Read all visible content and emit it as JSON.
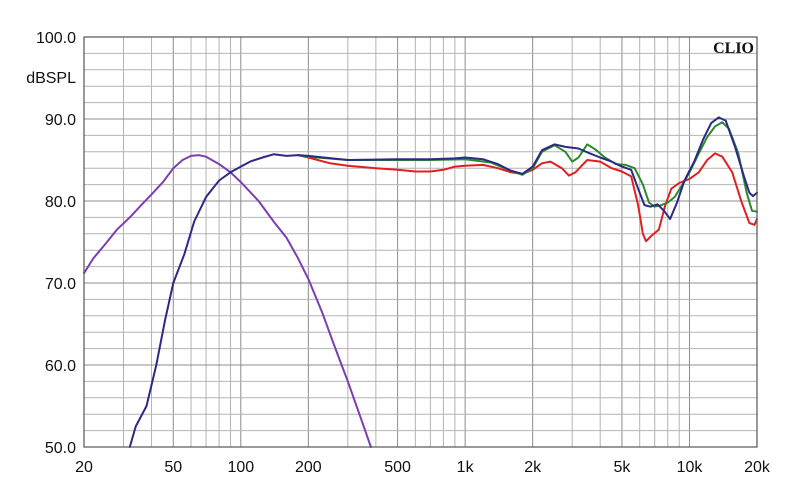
{
  "brand": "CLIO",
  "chart_data": {
    "type": "line",
    "title": "",
    "xlabel": "",
    "ylabel": "dBSPL",
    "xscale": "log",
    "xlim": [
      20,
      20000
    ],
    "ylim": [
      50,
      100
    ],
    "grid": true,
    "x_ticks": [
      {
        "value": 20,
        "label": "20"
      },
      {
        "value": 50,
        "label": "50"
      },
      {
        "value": 100,
        "label": "100"
      },
      {
        "value": 200,
        "label": "200"
      },
      {
        "value": 500,
        "label": "500"
      },
      {
        "value": 1000,
        "label": "1k"
      },
      {
        "value": 2000,
        "label": "2k"
      },
      {
        "value": 5000,
        "label": "5k"
      },
      {
        "value": 10000,
        "label": "10k"
      },
      {
        "value": 20000,
        "label": "20k"
      }
    ],
    "y_ticks": [
      {
        "value": 100,
        "label": "100.0"
      },
      {
        "value": 90,
        "label": "90.0"
      },
      {
        "value": 80,
        "label": "80.0"
      },
      {
        "value": 70,
        "label": "70.0"
      },
      {
        "value": 60,
        "label": "60.0"
      },
      {
        "value": 50,
        "label": "50.0"
      }
    ],
    "series": [
      {
        "color": "#7b3fb0",
        "points": [
          [
            20,
            71.2
          ],
          [
            22,
            73.0
          ],
          [
            25,
            74.8
          ],
          [
            28,
            76.5
          ],
          [
            32,
            78.0
          ],
          [
            36,
            79.5
          ],
          [
            40,
            80.8
          ],
          [
            45,
            82.3
          ],
          [
            50,
            84.0
          ],
          [
            55,
            85.0
          ],
          [
            60,
            85.5
          ],
          [
            65,
            85.6
          ],
          [
            70,
            85.4
          ],
          [
            80,
            84.5
          ],
          [
            90,
            83.5
          ],
          [
            100,
            82.3
          ],
          [
            120,
            80.0
          ],
          [
            140,
            77.5
          ],
          [
            160,
            75.5
          ],
          [
            180,
            73.0
          ],
          [
            200,
            70.5
          ],
          [
            230,
            66.5
          ],
          [
            260,
            62.5
          ],
          [
            300,
            58.0
          ],
          [
            340,
            53.8
          ],
          [
            380,
            50.0
          ]
        ]
      },
      {
        "color": "#e02020",
        "points": [
          [
            180,
            85.6
          ],
          [
            200,
            85.3
          ],
          [
            250,
            84.6
          ],
          [
            300,
            84.3
          ],
          [
            400,
            84.0
          ],
          [
            500,
            83.8
          ],
          [
            600,
            83.6
          ],
          [
            700,
            83.6
          ],
          [
            800,
            83.8
          ],
          [
            900,
            84.2
          ],
          [
            1000,
            84.3
          ],
          [
            1200,
            84.4
          ],
          [
            1400,
            84.0
          ],
          [
            1600,
            83.5
          ],
          [
            1800,
            83.3
          ],
          [
            2000,
            83.8
          ],
          [
            2200,
            84.6
          ],
          [
            2400,
            84.8
          ],
          [
            2700,
            84.0
          ],
          [
            2900,
            83.1
          ],
          [
            3100,
            83.5
          ],
          [
            3500,
            85.0
          ],
          [
            4000,
            84.8
          ],
          [
            4500,
            84.0
          ],
          [
            5000,
            83.6
          ],
          [
            5500,
            83.0
          ],
          [
            5900,
            79.5
          ],
          [
            6200,
            76.0
          ],
          [
            6400,
            75.1
          ],
          [
            6800,
            75.8
          ],
          [
            7300,
            76.5
          ],
          [
            7800,
            79.5
          ],
          [
            8300,
            81.5
          ],
          [
            9000,
            82.2
          ],
          [
            10000,
            82.7
          ],
          [
            11000,
            83.5
          ],
          [
            12000,
            85.0
          ],
          [
            13000,
            85.8
          ],
          [
            14000,
            85.4
          ],
          [
            15500,
            83.5
          ],
          [
            17000,
            80.0
          ],
          [
            18500,
            77.3
          ],
          [
            19500,
            77.1
          ],
          [
            20000,
            77.8
          ]
        ]
      },
      {
        "color": "#2c8a2c",
        "points": [
          [
            180,
            85.6
          ],
          [
            200,
            85.4
          ],
          [
            300,
            85.0
          ],
          [
            500,
            85.0
          ],
          [
            700,
            85.0
          ],
          [
            1000,
            85.1
          ],
          [
            1300,
            84.7
          ],
          [
            1600,
            83.7
          ],
          [
            1800,
            83.2
          ],
          [
            2000,
            84.0
          ],
          [
            2200,
            86.0
          ],
          [
            2500,
            86.8
          ],
          [
            2800,
            86.0
          ],
          [
            3000,
            84.8
          ],
          [
            3200,
            85.3
          ],
          [
            3500,
            86.9
          ],
          [
            3800,
            86.3
          ],
          [
            4200,
            85.3
          ],
          [
            4700,
            84.5
          ],
          [
            5200,
            84.4
          ],
          [
            5700,
            84.0
          ],
          [
            6200,
            82.0
          ],
          [
            6600,
            79.8
          ],
          [
            7000,
            79.3
          ],
          [
            7500,
            79.5
          ],
          [
            8000,
            79.8
          ],
          [
            8600,
            80.5
          ],
          [
            9300,
            82.0
          ],
          [
            10000,
            83.5
          ],
          [
            11000,
            85.8
          ],
          [
            12000,
            87.8
          ],
          [
            13000,
            89.1
          ],
          [
            14000,
            89.6
          ],
          [
            15000,
            88.8
          ],
          [
            16500,
            85.8
          ],
          [
            18000,
            81.0
          ],
          [
            19000,
            78.8
          ],
          [
            20000,
            78.7
          ]
        ]
      },
      {
        "color": "#2b2a85",
        "points": [
          [
            32,
            50.0
          ],
          [
            34,
            52.5
          ],
          [
            38,
            55.0
          ],
          [
            42,
            60.0
          ],
          [
            46,
            65.5
          ],
          [
            50,
            70.0
          ],
          [
            56,
            73.5
          ],
          [
            62,
            77.5
          ],
          [
            70,
            80.5
          ],
          [
            80,
            82.5
          ],
          [
            90,
            83.5
          ],
          [
            100,
            84.2
          ],
          [
            110,
            84.8
          ],
          [
            125,
            85.3
          ],
          [
            140,
            85.7
          ],
          [
            160,
            85.5
          ],
          [
            180,
            85.6
          ],
          [
            200,
            85.5
          ],
          [
            300,
            85.0
          ],
          [
            500,
            85.1
          ],
          [
            700,
            85.1
          ],
          [
            900,
            85.2
          ],
          [
            1000,
            85.3
          ],
          [
            1200,
            85.1
          ],
          [
            1400,
            84.5
          ],
          [
            1600,
            83.7
          ],
          [
            1800,
            83.3
          ],
          [
            2000,
            84.2
          ],
          [
            2200,
            86.2
          ],
          [
            2500,
            86.9
          ],
          [
            2800,
            86.6
          ],
          [
            3200,
            86.4
          ],
          [
            3600,
            85.8
          ],
          [
            4000,
            85.3
          ],
          [
            4500,
            84.8
          ],
          [
            5000,
            84.2
          ],
          [
            5500,
            83.8
          ],
          [
            5900,
            81.5
          ],
          [
            6300,
            79.5
          ],
          [
            6700,
            79.3
          ],
          [
            7200,
            79.6
          ],
          [
            7700,
            78.8
          ],
          [
            8200,
            77.8
          ],
          [
            8800,
            79.8
          ],
          [
            9500,
            82.5
          ],
          [
            10500,
            84.8
          ],
          [
            11500,
            87.5
          ],
          [
            12500,
            89.5
          ],
          [
            13500,
            90.2
          ],
          [
            14500,
            89.8
          ],
          [
            16000,
            86.5
          ],
          [
            17500,
            83.0
          ],
          [
            18500,
            81.0
          ],
          [
            19200,
            80.6
          ],
          [
            20000,
            81.0
          ]
        ]
      }
    ]
  }
}
